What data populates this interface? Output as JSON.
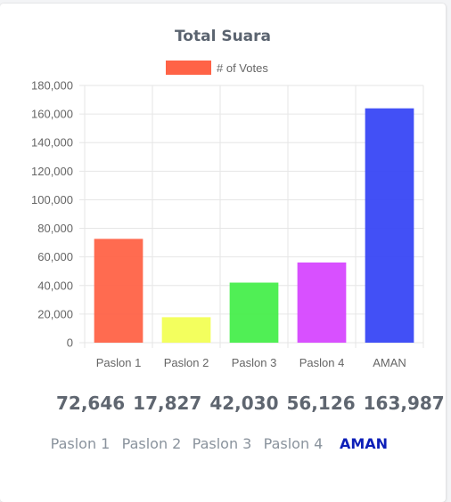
{
  "title": "Total Suara",
  "chart_data": {
    "type": "bar",
    "title": "Total Suara",
    "categories": [
      "Paslon 1",
      "Paslon 2",
      "Paslon 3",
      "Paslon 4",
      "AMAN"
    ],
    "series": [
      {
        "name": "# of Votes",
        "values": [
          72646,
          17827,
          42030,
          56126,
          163987
        ],
        "colors": [
          "#ff6347",
          "#f2ff55",
          "#47ee4c",
          "#d647ff",
          "#3847f5"
        ]
      }
    ],
    "ylim": [
      0,
      180000
    ],
    "yticks": [
      0,
      20000,
      40000,
      60000,
      80000,
      100000,
      120000,
      140000,
      160000,
      180000
    ],
    "ytick_labels": [
      "0",
      "20,000",
      "40,000",
      "60,000",
      "80,000",
      "100,000",
      "120,000",
      "140,000",
      "160,000",
      "180,000"
    ],
    "grid": true,
    "legend_position": "top"
  },
  "stats": [
    "72,646",
    "17,827",
    "42,030",
    "56,126",
    "163,987"
  ],
  "tabs": [
    {
      "label": "Paslon 1",
      "active": false
    },
    {
      "label": "Paslon 2",
      "active": false
    },
    {
      "label": "Paslon 3",
      "active": false
    },
    {
      "label": "Paslon 4",
      "active": false
    },
    {
      "label": "AMAN",
      "active": true
    }
  ],
  "colors": {
    "active_tab": "#0d1fb8",
    "inactive_tab": "#8a939d",
    "stat_text": "#5f6670"
  }
}
